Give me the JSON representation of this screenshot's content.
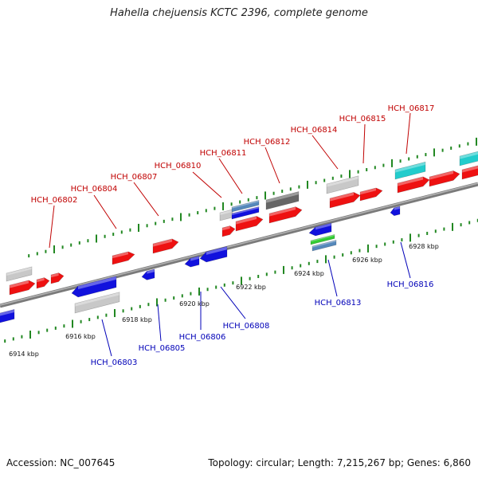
{
  "title": "Hahella chejuensis KCTC 2396, complete genome",
  "footer": {
    "accession": "Accession: NC_007645",
    "summary": "Topology: circular; Length: 7,215,267 bp; Genes: 6,860"
  },
  "colors": {
    "forward_gene": "#ee1111",
    "reverse_gene": "#1111dd",
    "grey_feature": "#c8c8c8",
    "dark_feature": "#666666",
    "cyan_feature": "#22cccc",
    "green_feature": "#33cc33",
    "steelblue_feature": "#5588bb",
    "backbone": "#8a8a8a",
    "tick": "#228822"
  },
  "scale_labels": [
    "6914 kbp",
    "6916 kbp",
    "6918 kbp",
    "6920 kbp",
    "6922 kbp",
    "6924 kbp",
    "6926 kbp",
    "6928 kbp"
  ],
  "top_labels": [
    "HCH_06802",
    "HCH_06804",
    "HCH_06807",
    "HCH_06810",
    "HCH_06811",
    "HCH_06812",
    "HCH_06814",
    "HCH_06815",
    "HCH_06817"
  ],
  "bottom_labels": [
    "HCH_06803",
    "HCH_06805",
    "HCH_06806",
    "HCH_06808",
    "HCH_06813",
    "HCH_06816"
  ]
}
